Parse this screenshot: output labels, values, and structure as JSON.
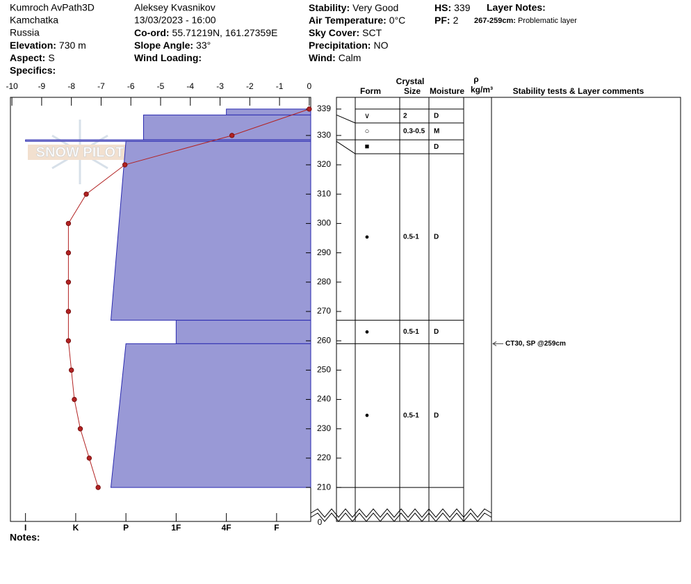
{
  "header": {
    "columns": [
      [
        {
          "text": "Kumroch AvPath3D"
        },
        {
          "text": "Kamchatka"
        },
        {
          "text": "Russia"
        },
        {
          "label": "Elevation:",
          "value": "730 m"
        },
        {
          "label": "Aspect:",
          "value": "S"
        },
        {
          "label": "Specifics:"
        }
      ],
      [
        {
          "text": "Aleksey Kvasnikov"
        },
        {
          "text": "13/03/2023 - 16:00"
        },
        {
          "label": "Co-ord:",
          "value": "55.71219N, 161.27359E"
        },
        {
          "label": "Slope Angle:",
          "value": "33°"
        },
        {
          "label": "Wind Loading:"
        }
      ],
      [
        {
          "label": "Stability:",
          "value": "Very Good"
        },
        {
          "label": "Air Temperature:",
          "value": "0°C"
        },
        {
          "label": "Sky Cover:",
          "value": "SCT"
        },
        {
          "label": "Precipitation:",
          "value": "NO"
        },
        {
          "label": "Wind:",
          "value": "Calm"
        }
      ],
      [
        {
          "label": "HS:",
          "value": "339"
        },
        {
          "label": "PF:",
          "value": "2"
        }
      ]
    ],
    "layer_notes_title": "Layer Notes:",
    "layer_notes": [
      {
        "label": "267-259cm:",
        "value": "Problematic layer"
      }
    ]
  },
  "watermark": "SNOW PILOT",
  "chart_data": {
    "type": "snow-profile",
    "tlim": [
      -10.05,
      0.05
    ],
    "tticks": [
      -10,
      -9,
      -8,
      -7,
      -6,
      -5,
      -4,
      -3,
      -2,
      -1,
      0
    ],
    "ylim": [
      206,
      343
    ],
    "yticks": [
      210,
      220,
      230,
      240,
      250,
      260,
      270,
      280,
      290,
      300,
      310,
      320,
      330,
      339
    ],
    "break_tick": 0,
    "hlim": [
      -0.3,
      5.68
    ],
    "hticks": [
      {
        "value": 0,
        "label": "I"
      },
      {
        "value": 1,
        "label": "K"
      },
      {
        "value": 2,
        "label": "P"
      },
      {
        "value": 3,
        "label": "1F"
      },
      {
        "value": 4,
        "label": "4F"
      },
      {
        "value": 5,
        "label": "F"
      }
    ],
    "temperature": {
      "color": "#b22222",
      "heights": [
        339,
        330,
        320,
        310,
        300,
        290,
        280,
        270,
        260,
        250,
        240,
        230,
        220,
        210
      ],
      "values": [
        0,
        -2.6,
        -6.2,
        -7.5,
        -8.1,
        -8.1,
        -8.1,
        -8.1,
        -8.1,
        -8.0,
        -7.9,
        -7.7,
        -7.4,
        -7.1
      ]
    },
    "layer_color": "#9999d6",
    "layers": [
      {
        "top": 339,
        "bottom": 337,
        "hardness_top": 4,
        "hardness_bottom": 4,
        "form": "∨",
        "size": "2",
        "moisture": "D"
      },
      {
        "top": 337,
        "bottom": 328.5,
        "hardness_top": 2.35,
        "hardness_bottom": 2.35,
        "form": "○",
        "size": "0.3-0.5",
        "moisture": "M"
      },
      {
        "top": 328.5,
        "bottom": 328,
        "hardness_top": 0,
        "hardness_bottom": 0,
        "form": "■",
        "moisture": "D"
      },
      {
        "top": 328,
        "bottom": 267,
        "hardness_top": 2.0,
        "hardness_bottom": 1.7,
        "form": "●",
        "size": "0.5-1",
        "moisture": "D"
      },
      {
        "top": 267,
        "bottom": 259,
        "hardness_top": 3.0,
        "hardness_bottom": 3.0,
        "form": "●",
        "size": "0.5-1",
        "moisture": "D"
      },
      {
        "top": 259,
        "bottom": 210,
        "hardness_top": 2.0,
        "hardness_bottom": 1.7,
        "form": "●",
        "size": "0.5-1",
        "moisture": "D"
      }
    ],
    "columns": {
      "crystal": "Crystal",
      "form": "Form",
      "size": "Size",
      "moisture": "Moisture",
      "density": "ρ",
      "density_unit": "kg/m³",
      "comments": "Stability tests & Layer comments"
    },
    "tests": [
      {
        "text": "CT30, SP @259cm",
        "height": 259
      }
    ]
  },
  "notes": "Notes:"
}
